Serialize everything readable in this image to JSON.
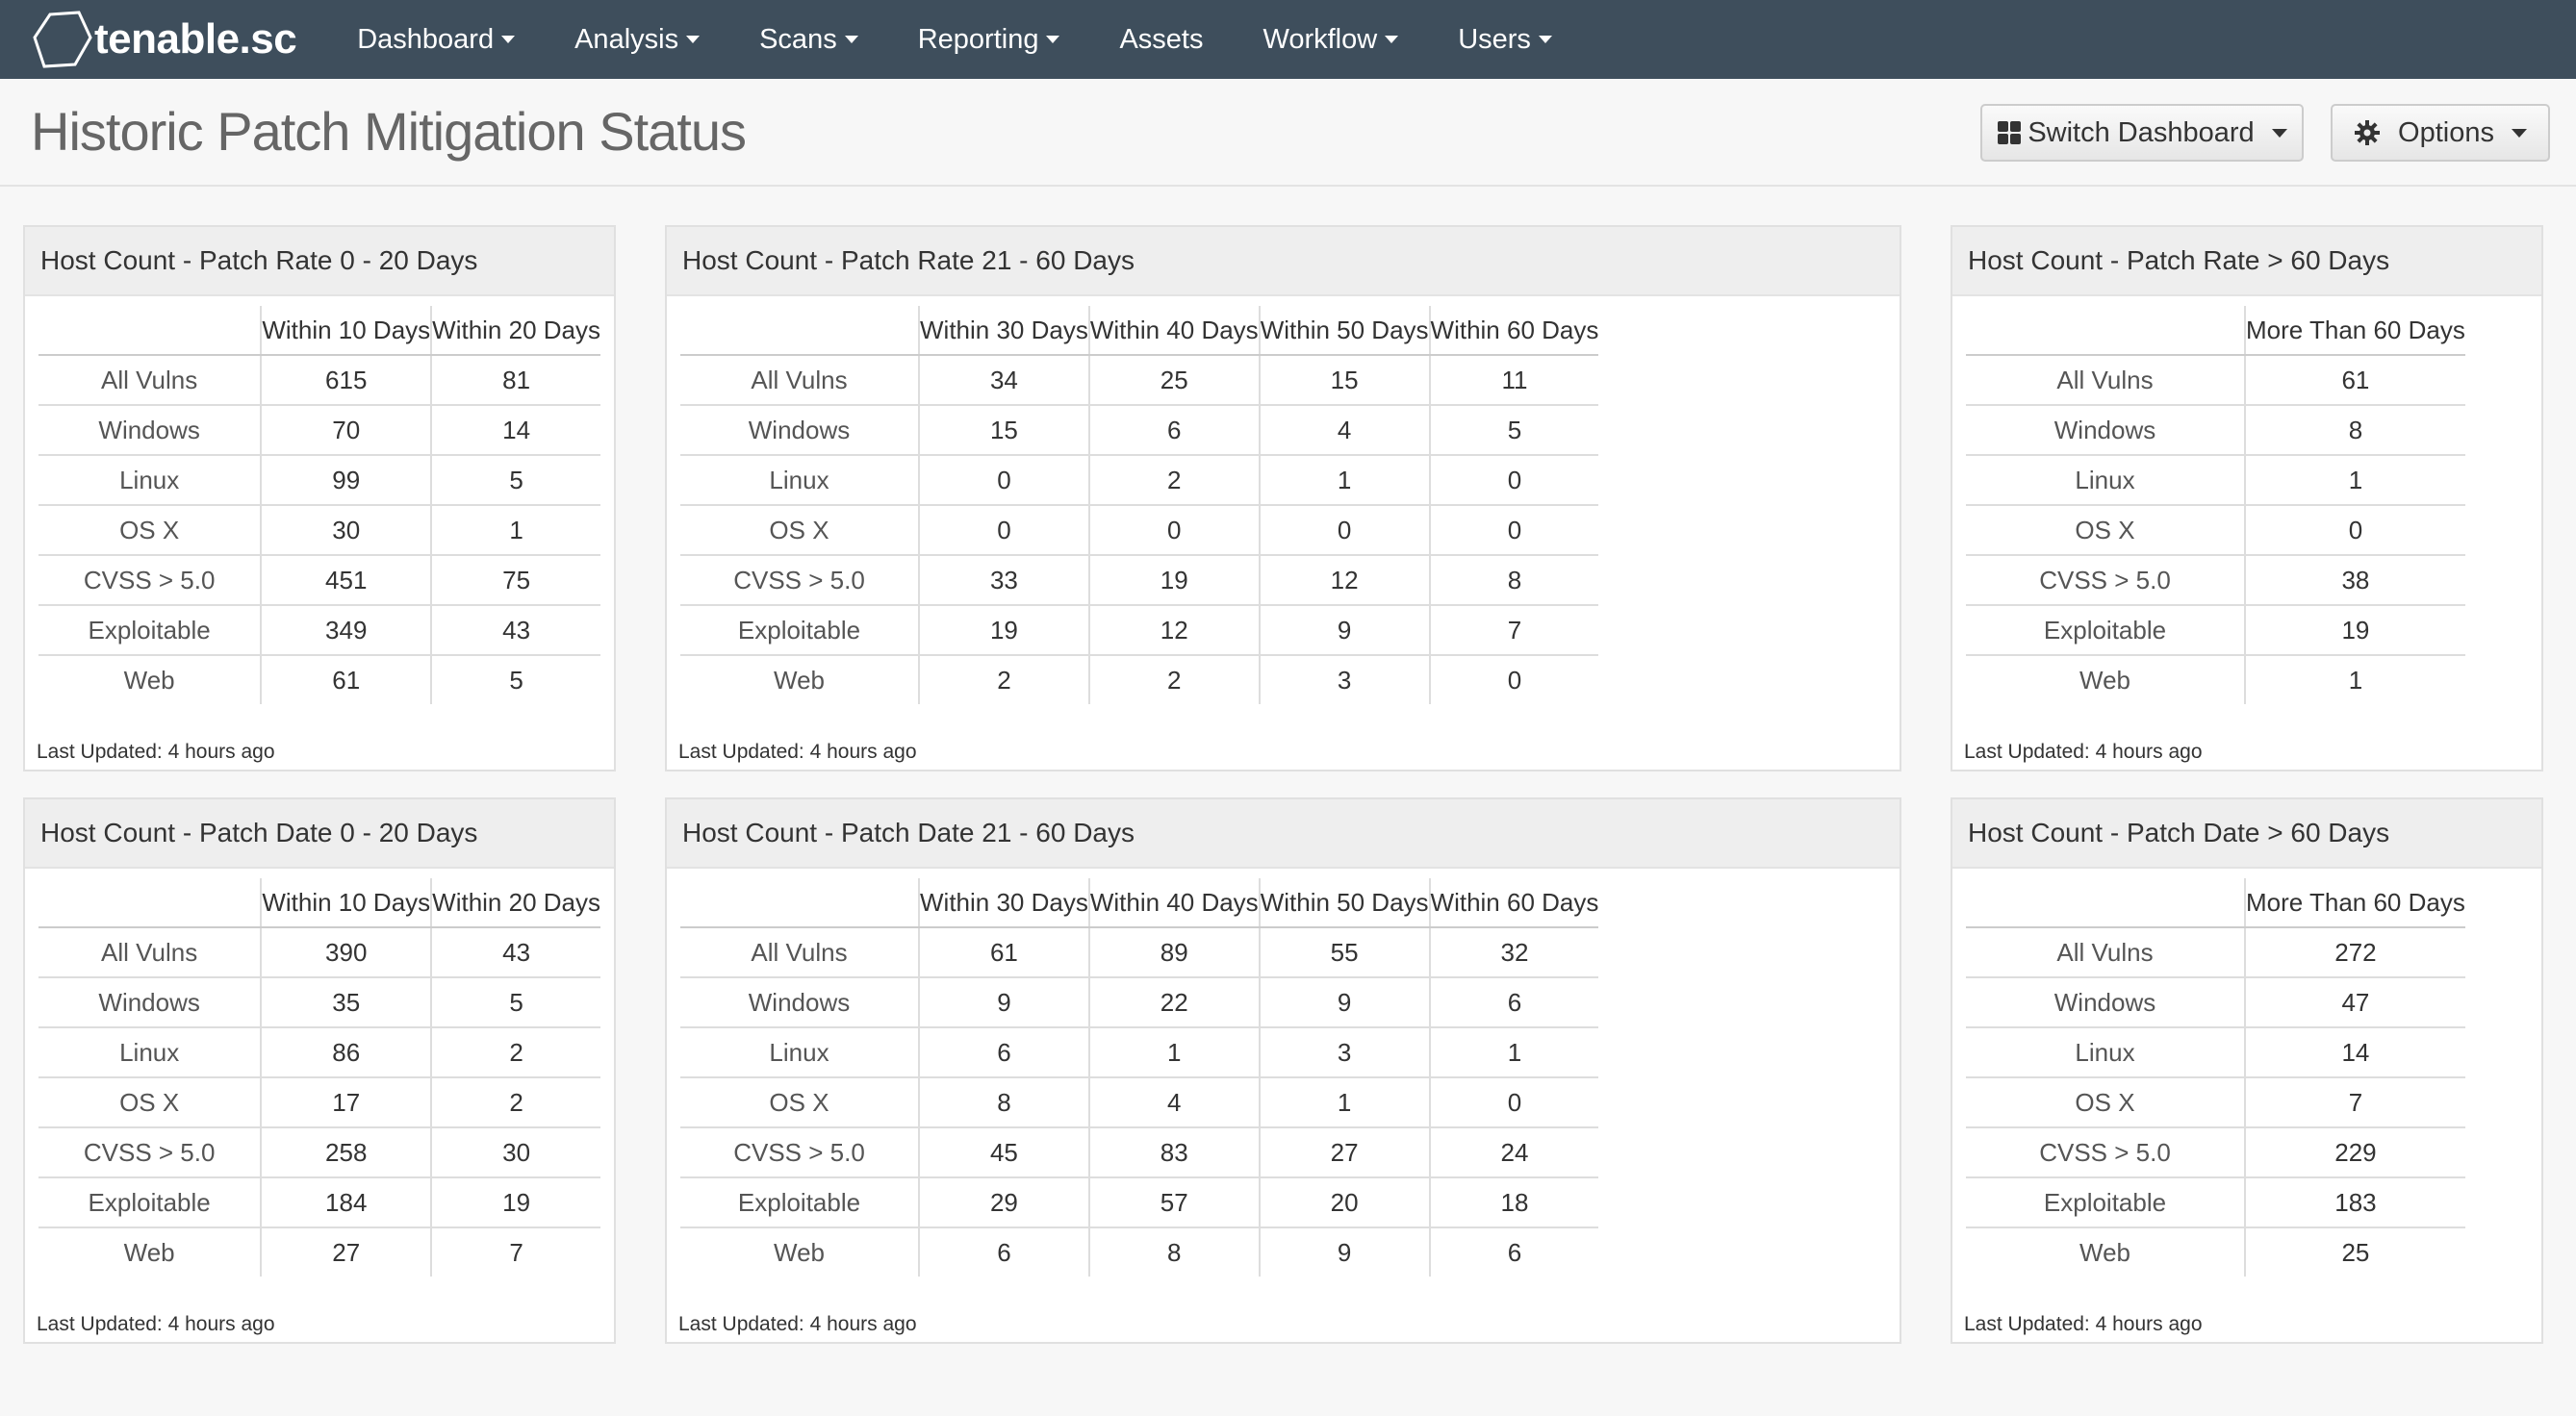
{
  "app": {
    "brand": "tenable.sc",
    "menu": [
      {
        "label": "Dashboard",
        "dropdown": true
      },
      {
        "label": "Analysis",
        "dropdown": true
      },
      {
        "label": "Scans",
        "dropdown": true
      },
      {
        "label": "Reporting",
        "dropdown": true
      },
      {
        "label": "Assets",
        "dropdown": false
      },
      {
        "label": "Workflow",
        "dropdown": true
      },
      {
        "label": "Users",
        "dropdown": true
      }
    ]
  },
  "header": {
    "title": "Historic Patch Mitigation Status",
    "switch_label": "Switch Dashboard",
    "options_label": "Options"
  },
  "colors": {
    "nav_bg": "#3e4e5c",
    "panel_head_bg": "#eeeeee",
    "page_bg": "#f7f7f7"
  },
  "rows": [
    "All Vulns",
    "Windows",
    "Linux",
    "OS X",
    "CVSS > 5.0",
    "Exploitable",
    "Web"
  ],
  "panels": [
    {
      "title": "Host Count - Patch Rate 0 - 20 Days",
      "columns": [
        "Within 10 Days",
        "Within 20 Days"
      ],
      "values": [
        [
          "615",
          "81"
        ],
        [
          "70",
          "14"
        ],
        [
          "99",
          "5"
        ],
        [
          "30",
          "1"
        ],
        [
          "451",
          "75"
        ],
        [
          "349",
          "43"
        ],
        [
          "61",
          "5"
        ]
      ],
      "footer": "Last Updated: 4 hours ago"
    },
    {
      "title": "Host Count - Patch Rate 21 - 60 Days",
      "columns": [
        "Within 30 Days",
        "Within 40 Days",
        "Within 50 Days",
        "Within 60 Days"
      ],
      "values": [
        [
          "34",
          "25",
          "15",
          "11"
        ],
        [
          "15",
          "6",
          "4",
          "5"
        ],
        [
          "0",
          "2",
          "1",
          "0"
        ],
        [
          "0",
          "0",
          "0",
          "0"
        ],
        [
          "33",
          "19",
          "12",
          "8"
        ],
        [
          "19",
          "12",
          "9",
          "7"
        ],
        [
          "2",
          "2",
          "3",
          "0"
        ]
      ],
      "footer": "Last Updated: 4 hours ago"
    },
    {
      "title": "Host Count - Patch Rate > 60 Days",
      "columns": [
        "More Than 60 Days"
      ],
      "values": [
        [
          "61"
        ],
        [
          "8"
        ],
        [
          "1"
        ],
        [
          "0"
        ],
        [
          "38"
        ],
        [
          "19"
        ],
        [
          "1"
        ]
      ],
      "footer": "Last Updated: 4 hours ago"
    },
    {
      "title": "Host Count - Patch Date 0 - 20 Days",
      "columns": [
        "Within 10 Days",
        "Within 20 Days"
      ],
      "values": [
        [
          "390",
          "43"
        ],
        [
          "35",
          "5"
        ],
        [
          "86",
          "2"
        ],
        [
          "17",
          "2"
        ],
        [
          "258",
          "30"
        ],
        [
          "184",
          "19"
        ],
        [
          "27",
          "7"
        ]
      ],
      "footer": "Last Updated: 4 hours ago"
    },
    {
      "title": "Host Count - Patch Date 21 - 60 Days",
      "columns": [
        "Within 30 Days",
        "Within 40 Days",
        "Within 50 Days",
        "Within 60 Days"
      ],
      "values": [
        [
          "61",
          "89",
          "55",
          "32"
        ],
        [
          "9",
          "22",
          "9",
          "6"
        ],
        [
          "6",
          "1",
          "3",
          "1"
        ],
        [
          "8",
          "4",
          "1",
          "0"
        ],
        [
          "45",
          "83",
          "27",
          "24"
        ],
        [
          "29",
          "57",
          "20",
          "18"
        ],
        [
          "6",
          "8",
          "9",
          "6"
        ]
      ],
      "footer": "Last Updated: 4 hours ago"
    },
    {
      "title": "Host Count - Patch Date > 60 Days",
      "columns": [
        "More Than 60 Days"
      ],
      "values": [
        [
          "272"
        ],
        [
          "47"
        ],
        [
          "14"
        ],
        [
          "7"
        ],
        [
          "229"
        ],
        [
          "183"
        ],
        [
          "25"
        ]
      ],
      "footer": "Last Updated: 4 hours ago"
    }
  ]
}
